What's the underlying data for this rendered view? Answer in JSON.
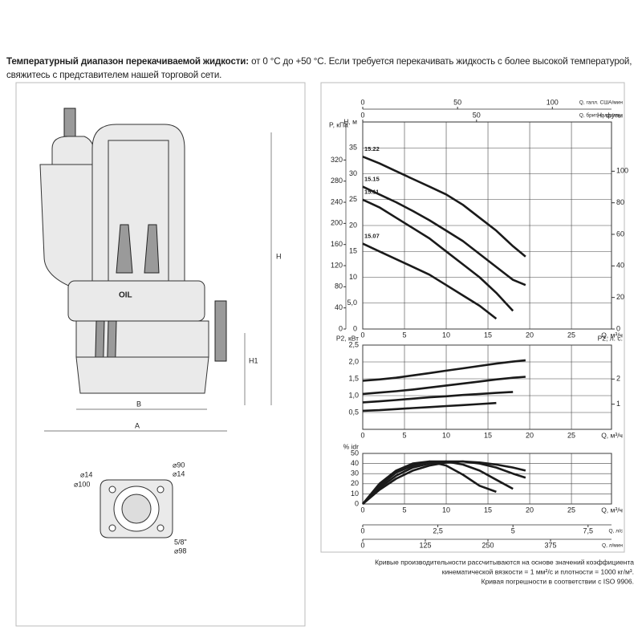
{
  "header": {
    "label": "Температурный диапазон перекачиваемой жидкости:",
    "text": "от 0 °C до +50 °C. Если требуется перекачивать жидкость с более высокой температурой,",
    "line2": "свяжитесь с представителем нашей торговой сети."
  },
  "drawing": {
    "oil": "OIL",
    "dims": [
      "H",
      "H1",
      "B",
      "A"
    ],
    "base": [
      "⌀14",
      "⌀100",
      "⌀90",
      "⌀14",
      "5/8\"",
      "⌀98"
    ]
  },
  "footnote": [
    "Кривые производительности рассчитываются на основе значений коэффициента",
    "кинематической вязкости = 1 мм²/с и плотности = 1000 кг/м³.",
    "Кривая погрешности в соответствии с ISO 9906."
  ],
  "chart_data": [
    {
      "type": "line",
      "y_label": "H, м",
      "y2_label": "H, футы",
      "y3_label": "P, кПа",
      "x_label": "Q, м³/ч",
      "x2_label": "Q, галл. США/мин",
      "x3_label": "Q, брит. галл./мин",
      "grid": true,
      "x": [
        0,
        2,
        4,
        6,
        8,
        10,
        12,
        14,
        16,
        18,
        19.5
      ],
      "xlim": [
        0,
        29.8
      ],
      "xticks": [
        0,
        5,
        10,
        15,
        20,
        25
      ],
      "x2lim": [
        0,
        131.2
      ],
      "x2ticks": [
        0,
        50,
        100
      ],
      "x3lim": [
        0,
        109.3
      ],
      "x3ticks": [
        0,
        50
      ],
      "ylim": [
        0,
        40
      ],
      "yticks": [
        0,
        {
          "value": 5,
          "label": "5,0"
        },
        10,
        15,
        20,
        25,
        30,
        35
      ],
      "y2lim": [
        0,
        131.2
      ],
      "y2ticks": [
        0,
        20,
        40,
        60,
        80,
        100
      ],
      "y3lim": [
        0,
        392
      ],
      "y3ticks": [
        0,
        40,
        80,
        120,
        160,
        200,
        240,
        280,
        320
      ],
      "series": [
        {
          "name": "15.22",
          "color": "#1a1a1a",
          "values": [
            33.3,
            32,
            30.5,
            29,
            27.5,
            26,
            24,
            21.5,
            19,
            16,
            14
          ]
        },
        {
          "name": "15.15",
          "color": "#1a1a1a",
          "values": [
            27.5,
            26,
            24.5,
            22.8,
            21,
            19,
            17,
            14.5,
            12,
            9.5,
            8.5
          ]
        },
        {
          "name": "15.11",
          "color": "#1a1a1a",
          "values": [
            25,
            23.5,
            21.5,
            19.5,
            17.5,
            15,
            12.5,
            10,
            7,
            3.5,
            null
          ]
        },
        {
          "name": "15.07",
          "color": "#1a1a1a",
          "values": [
            16.5,
            15,
            13.5,
            12,
            10.5,
            8.5,
            6.5,
            4.5,
            2,
            null,
            null
          ]
        }
      ]
    },
    {
      "type": "line",
      "y_label": "P2, кВт",
      "y2_label": "P2, л. с.",
      "x_label": "Q, м³/ч",
      "grid": true,
      "x": [
        0,
        2,
        4,
        6,
        8,
        10,
        12,
        14,
        16,
        18,
        19.5
      ],
      "xlim": [
        0,
        29.8
      ],
      "xticks": [
        0,
        5,
        10,
        15,
        20,
        25
      ],
      "ylim": [
        0,
        2.5
      ],
      "yticks": [
        {
          "value": 0.5,
          "label": "0,5"
        },
        {
          "value": 1,
          "label": "1,0"
        },
        {
          "value": 1.5,
          "label": "1,5"
        },
        {
          "value": 2,
          "label": "2,0"
        },
        {
          "value": 2.5,
          "label": "2,5"
        }
      ],
      "y2lim": [
        0,
        3.35
      ],
      "y2ticks": [
        1,
        2
      ],
      "series": [
        {
          "color": "#1a1a1a",
          "values": [
            1.44,
            1.48,
            1.53,
            1.6,
            1.67,
            1.74,
            1.81,
            1.88,
            1.95,
            2.01,
            2.05
          ]
        },
        {
          "color": "#1a1a1a",
          "values": [
            1.05,
            1.09,
            1.13,
            1.18,
            1.24,
            1.3,
            1.36,
            1.42,
            1.48,
            1.53,
            1.56
          ]
        },
        {
          "color": "#1a1a1a",
          "values": [
            0.8,
            0.83,
            0.87,
            0.91,
            0.95,
            0.98,
            1.02,
            1.05,
            1.08,
            1.11,
            null
          ]
        },
        {
          "color": "#1a1a1a",
          "values": [
            0.55,
            0.57,
            0.6,
            0.63,
            0.66,
            0.69,
            0.72,
            0.75,
            0.78,
            null,
            null
          ]
        }
      ]
    },
    {
      "type": "line",
      "y_label": "% idr",
      "x_label": "Q, м³/ч",
      "x2_label": "Q, л/с",
      "x3_label": "Q, л/мин",
      "grid": true,
      "x": [
        0,
        2,
        4,
        6,
        8,
        10,
        12,
        14,
        16,
        18,
        19.5
      ],
      "xlim": [
        0,
        29.8
      ],
      "xticks": [
        0,
        5,
        10,
        15,
        20,
        25
      ],
      "x2lim": [
        0,
        8.28
      ],
      "x2ticks": [
        0,
        {
          "value": 2.5,
          "label": "2,5"
        },
        5,
        {
          "value": 7.5,
          "label": "7,5"
        }
      ],
      "x3lim": [
        0,
        496.7
      ],
      "x3ticks": [
        0,
        125,
        250,
        375
      ],
      "ylim": [
        0,
        50
      ],
      "yticks": [
        0,
        10,
        20,
        30,
        40,
        50
      ],
      "series": [
        {
          "color": "#1a1a1a",
          "values": [
            0,
            14,
            25,
            33,
            38,
            41,
            42,
            41,
            39,
            36,
            33
          ]
        },
        {
          "color": "#1a1a1a",
          "values": [
            0,
            16,
            28,
            36,
            40,
            42,
            42,
            40,
            36,
            30,
            26
          ]
        },
        {
          "color": "#1a1a1a",
          "values": [
            0,
            18,
            31,
            38,
            42,
            42,
            39,
            33,
            24,
            15,
            null
          ]
        },
        {
          "color": "#1a1a1a",
          "values": [
            0,
            20,
            33,
            40,
            42,
            38,
            29,
            18,
            12,
            null,
            null
          ]
        }
      ]
    }
  ]
}
